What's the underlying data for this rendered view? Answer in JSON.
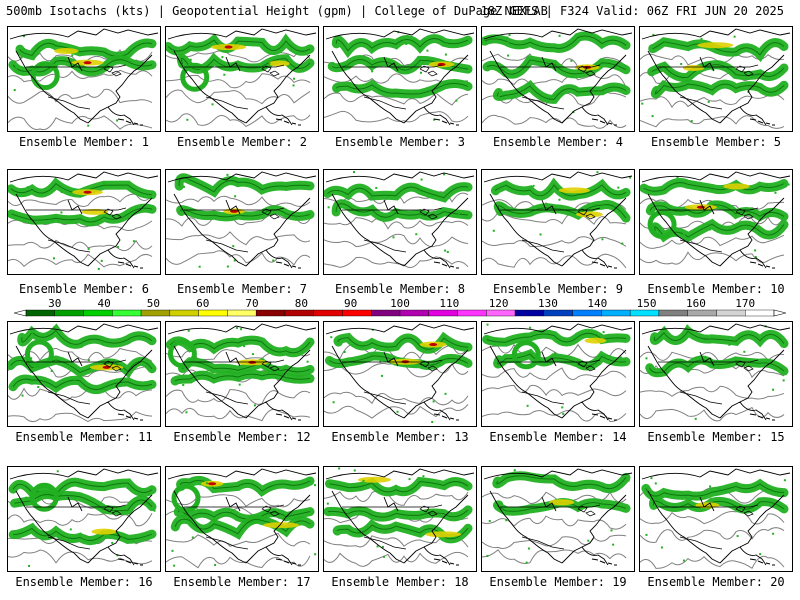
{
  "header": {
    "left": "500mb Isotachs (kts) | Geopotential Height (gpm) | College of DuPage NEXLAB",
    "right": "18Z GEFS | F324 Valid: 06Z FRI JUN 20 2025"
  },
  "panel_label_prefix": "Ensemble Member:",
  "members": [
    "1",
    "2",
    "3",
    "4",
    "5",
    "6",
    "7",
    "8",
    "9",
    "10",
    "11",
    "12",
    "13",
    "14",
    "15",
    "16",
    "17",
    "18",
    "19",
    "20"
  ],
  "colorbar": {
    "ticks": [
      "30",
      "40",
      "50",
      "60",
      "70",
      "80",
      "90",
      "100",
      "110",
      "120",
      "130",
      "140",
      "150",
      "160",
      "170"
    ],
    "colors": [
      "#006400",
      "#00a000",
      "#00d000",
      "#33ff33",
      "#a0a000",
      "#d0d000",
      "#ffff00",
      "#ffff66",
      "#8b0000",
      "#b00000",
      "#e00000",
      "#ff0000",
      "#800080",
      "#b000b0",
      "#e000e0",
      "#ff33ff",
      "#ff66ff",
      "#0000a0",
      "#0040c0",
      "#0080ff",
      "#00b0ff",
      "#00e0ff",
      "#808080",
      "#a9a9a9",
      "#d3d3d3",
      "#ffffff"
    ]
  },
  "colors": {
    "jet_green": "#22b022",
    "jet_dark": "#0a7a0a",
    "jet_core": "#e0d000",
    "jet_max": "#c00000",
    "height_contour": "#808080",
    "map_lines": "#000000"
  }
}
